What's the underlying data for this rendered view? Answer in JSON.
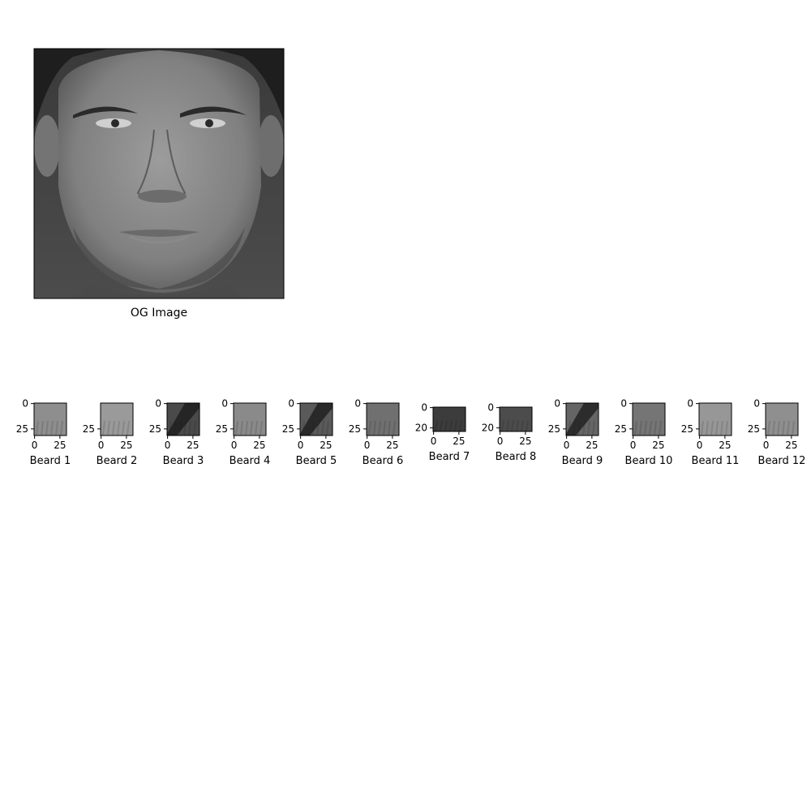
{
  "figure": {
    "main_caption": "OG Image"
  },
  "chart_data": [
    {
      "type": "image",
      "title": "",
      "xlabel": "OG Image",
      "ylabel": "",
      "axes_visible": false,
      "content": "grayscale frontal male face photograph"
    },
    {
      "type": "image",
      "xlabel": "Beard 1",
      "xticks": [
        0,
        25
      ],
      "yticks": [
        0,
        25
      ],
      "xlim": [
        0,
        32
      ],
      "ylim": [
        0,
        32
      ],
      "tone": "#8e8e8e",
      "dark_band": false
    },
    {
      "type": "image",
      "xlabel": "Beard 2",
      "xticks": [
        0,
        25
      ],
      "yticks": [
        25
      ],
      "xlim": [
        0,
        32
      ],
      "ylim": [
        0,
        32
      ],
      "tone": "#9a9a9a",
      "dark_band": false
    },
    {
      "type": "image",
      "xlabel": "Beard 3",
      "xticks": [
        0,
        25
      ],
      "yticks": [
        0,
        25
      ],
      "xlim": [
        0,
        32
      ],
      "ylim": [
        0,
        32
      ],
      "tone": "#4a4a4a",
      "dark_band": true
    },
    {
      "type": "image",
      "xlabel": "Beard 4",
      "xticks": [
        0,
        25
      ],
      "yticks": [
        0,
        25
      ],
      "xlim": [
        0,
        32
      ],
      "ylim": [
        0,
        32
      ],
      "tone": "#8a8a8a",
      "dark_band": false
    },
    {
      "type": "image",
      "xlabel": "Beard 5",
      "xticks": [
        0,
        25
      ],
      "yticks": [
        0,
        25
      ],
      "xlim": [
        0,
        32
      ],
      "ylim": [
        0,
        32
      ],
      "tone": "#5a5a5a",
      "dark_band": true
    },
    {
      "type": "image",
      "xlabel": "Beard 6",
      "xticks": [
        0,
        25
      ],
      "yticks": [
        0,
        25
      ],
      "xlim": [
        0,
        32
      ],
      "ylim": [
        0,
        32
      ],
      "tone": "#707070",
      "dark_band": false
    },
    {
      "type": "image",
      "xlabel": "Beard 7",
      "xticks": [
        0,
        25
      ],
      "yticks": [
        0,
        20
      ],
      "xlim": [
        0,
        32
      ],
      "ylim": [
        0,
        24
      ],
      "tone": "#3c3c3c",
      "dark_band": false
    },
    {
      "type": "image",
      "xlabel": "Beard 8",
      "xticks": [
        0,
        25
      ],
      "yticks": [
        0,
        20
      ],
      "xlim": [
        0,
        32
      ],
      "ylim": [
        0,
        24
      ],
      "tone": "#4c4c4c",
      "dark_band": false
    },
    {
      "type": "image",
      "xlabel": "Beard 9",
      "xticks": [
        0,
        25
      ],
      "yticks": [
        0,
        25
      ],
      "xlim": [
        0,
        32
      ],
      "ylim": [
        0,
        32
      ],
      "tone": "#656565",
      "dark_band": true
    },
    {
      "type": "image",
      "xlabel": "Beard 10",
      "xticks": [
        0,
        25
      ],
      "yticks": [
        0,
        25
      ],
      "xlim": [
        0,
        32
      ],
      "ylim": [
        0,
        32
      ],
      "tone": "#757575",
      "dark_band": false
    },
    {
      "type": "image",
      "xlabel": "Beard 11",
      "xticks": [
        0,
        25
      ],
      "yticks": [
        0,
        25
      ],
      "xlim": [
        0,
        32
      ],
      "ylim": [
        0,
        32
      ],
      "tone": "#979797",
      "dark_band": false
    },
    {
      "type": "image",
      "xlabel": "Beard 12",
      "xticks": [
        0,
        25
      ],
      "yticks": [
        0,
        25
      ],
      "xlim": [
        0,
        32
      ],
      "ylim": [
        0,
        32
      ],
      "tone": "#8f8f8f",
      "dark_band": false
    }
  ]
}
